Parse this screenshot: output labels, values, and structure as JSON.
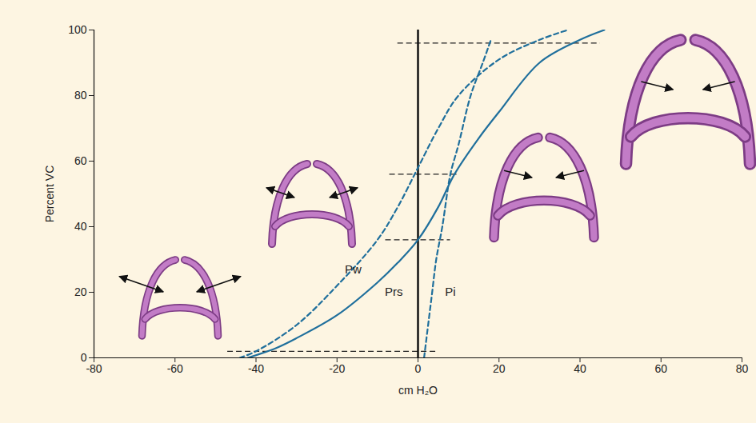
{
  "chart_data": {
    "type": "line",
    "x_label": "cm H₂O",
    "y_label": "Percent VC",
    "xlim": [
      -80,
      80
    ],
    "xticks": [
      -80,
      -60,
      -40,
      -20,
      0,
      20,
      40,
      60,
      80
    ],
    "ylim": [
      0,
      100
    ],
    "yticks": [
      0,
      20,
      40,
      60,
      80,
      100
    ],
    "grid": false,
    "vertical_line": 0,
    "reference_lines": [
      {
        "y": 2,
        "x1": -47,
        "x2": 5
      },
      {
        "y": 36,
        "x1": -8,
        "x2": 8
      },
      {
        "y": 56,
        "x1": -7,
        "x2": 10
      },
      {
        "y": 96,
        "x1": -5,
        "x2": 45
      }
    ],
    "series": [
      {
        "name": "Pw",
        "color": "#1f6f9c",
        "line_style": "dashed",
        "label_at": [
          -16,
          27
        ],
        "x": [
          -44,
          -40,
          -30,
          -20,
          -10,
          -5,
          0,
          5,
          10,
          20,
          30,
          37
        ],
        "values": [
          0,
          2,
          10,
          22,
          36,
          46,
          58,
          70,
          80,
          91,
          97,
          100
        ]
      },
      {
        "name": "Prs",
        "color": "#1f6f9c",
        "line_style": "solid",
        "label_at": [
          -6,
          20
        ],
        "x": [
          -42,
          -35,
          -30,
          -20,
          -10,
          -5,
          0,
          5,
          9,
          15,
          20,
          30,
          40,
          46
        ],
        "values": [
          0,
          3,
          6,
          13,
          23,
          29,
          36,
          46,
          56,
          67,
          75,
          90,
          97,
          100
        ]
      },
      {
        "name": "Pi",
        "color": "#1f6f9c",
        "line_style": "dashed",
        "label_at": [
          8,
          20
        ],
        "x": [
          1.5,
          2.5,
          3.5,
          4.5,
          6,
          8,
          10,
          13,
          16,
          18
        ],
        "values": [
          0,
          10,
          20,
          30,
          40,
          56,
          65,
          80,
          90,
          97
        ]
      }
    ]
  }
}
